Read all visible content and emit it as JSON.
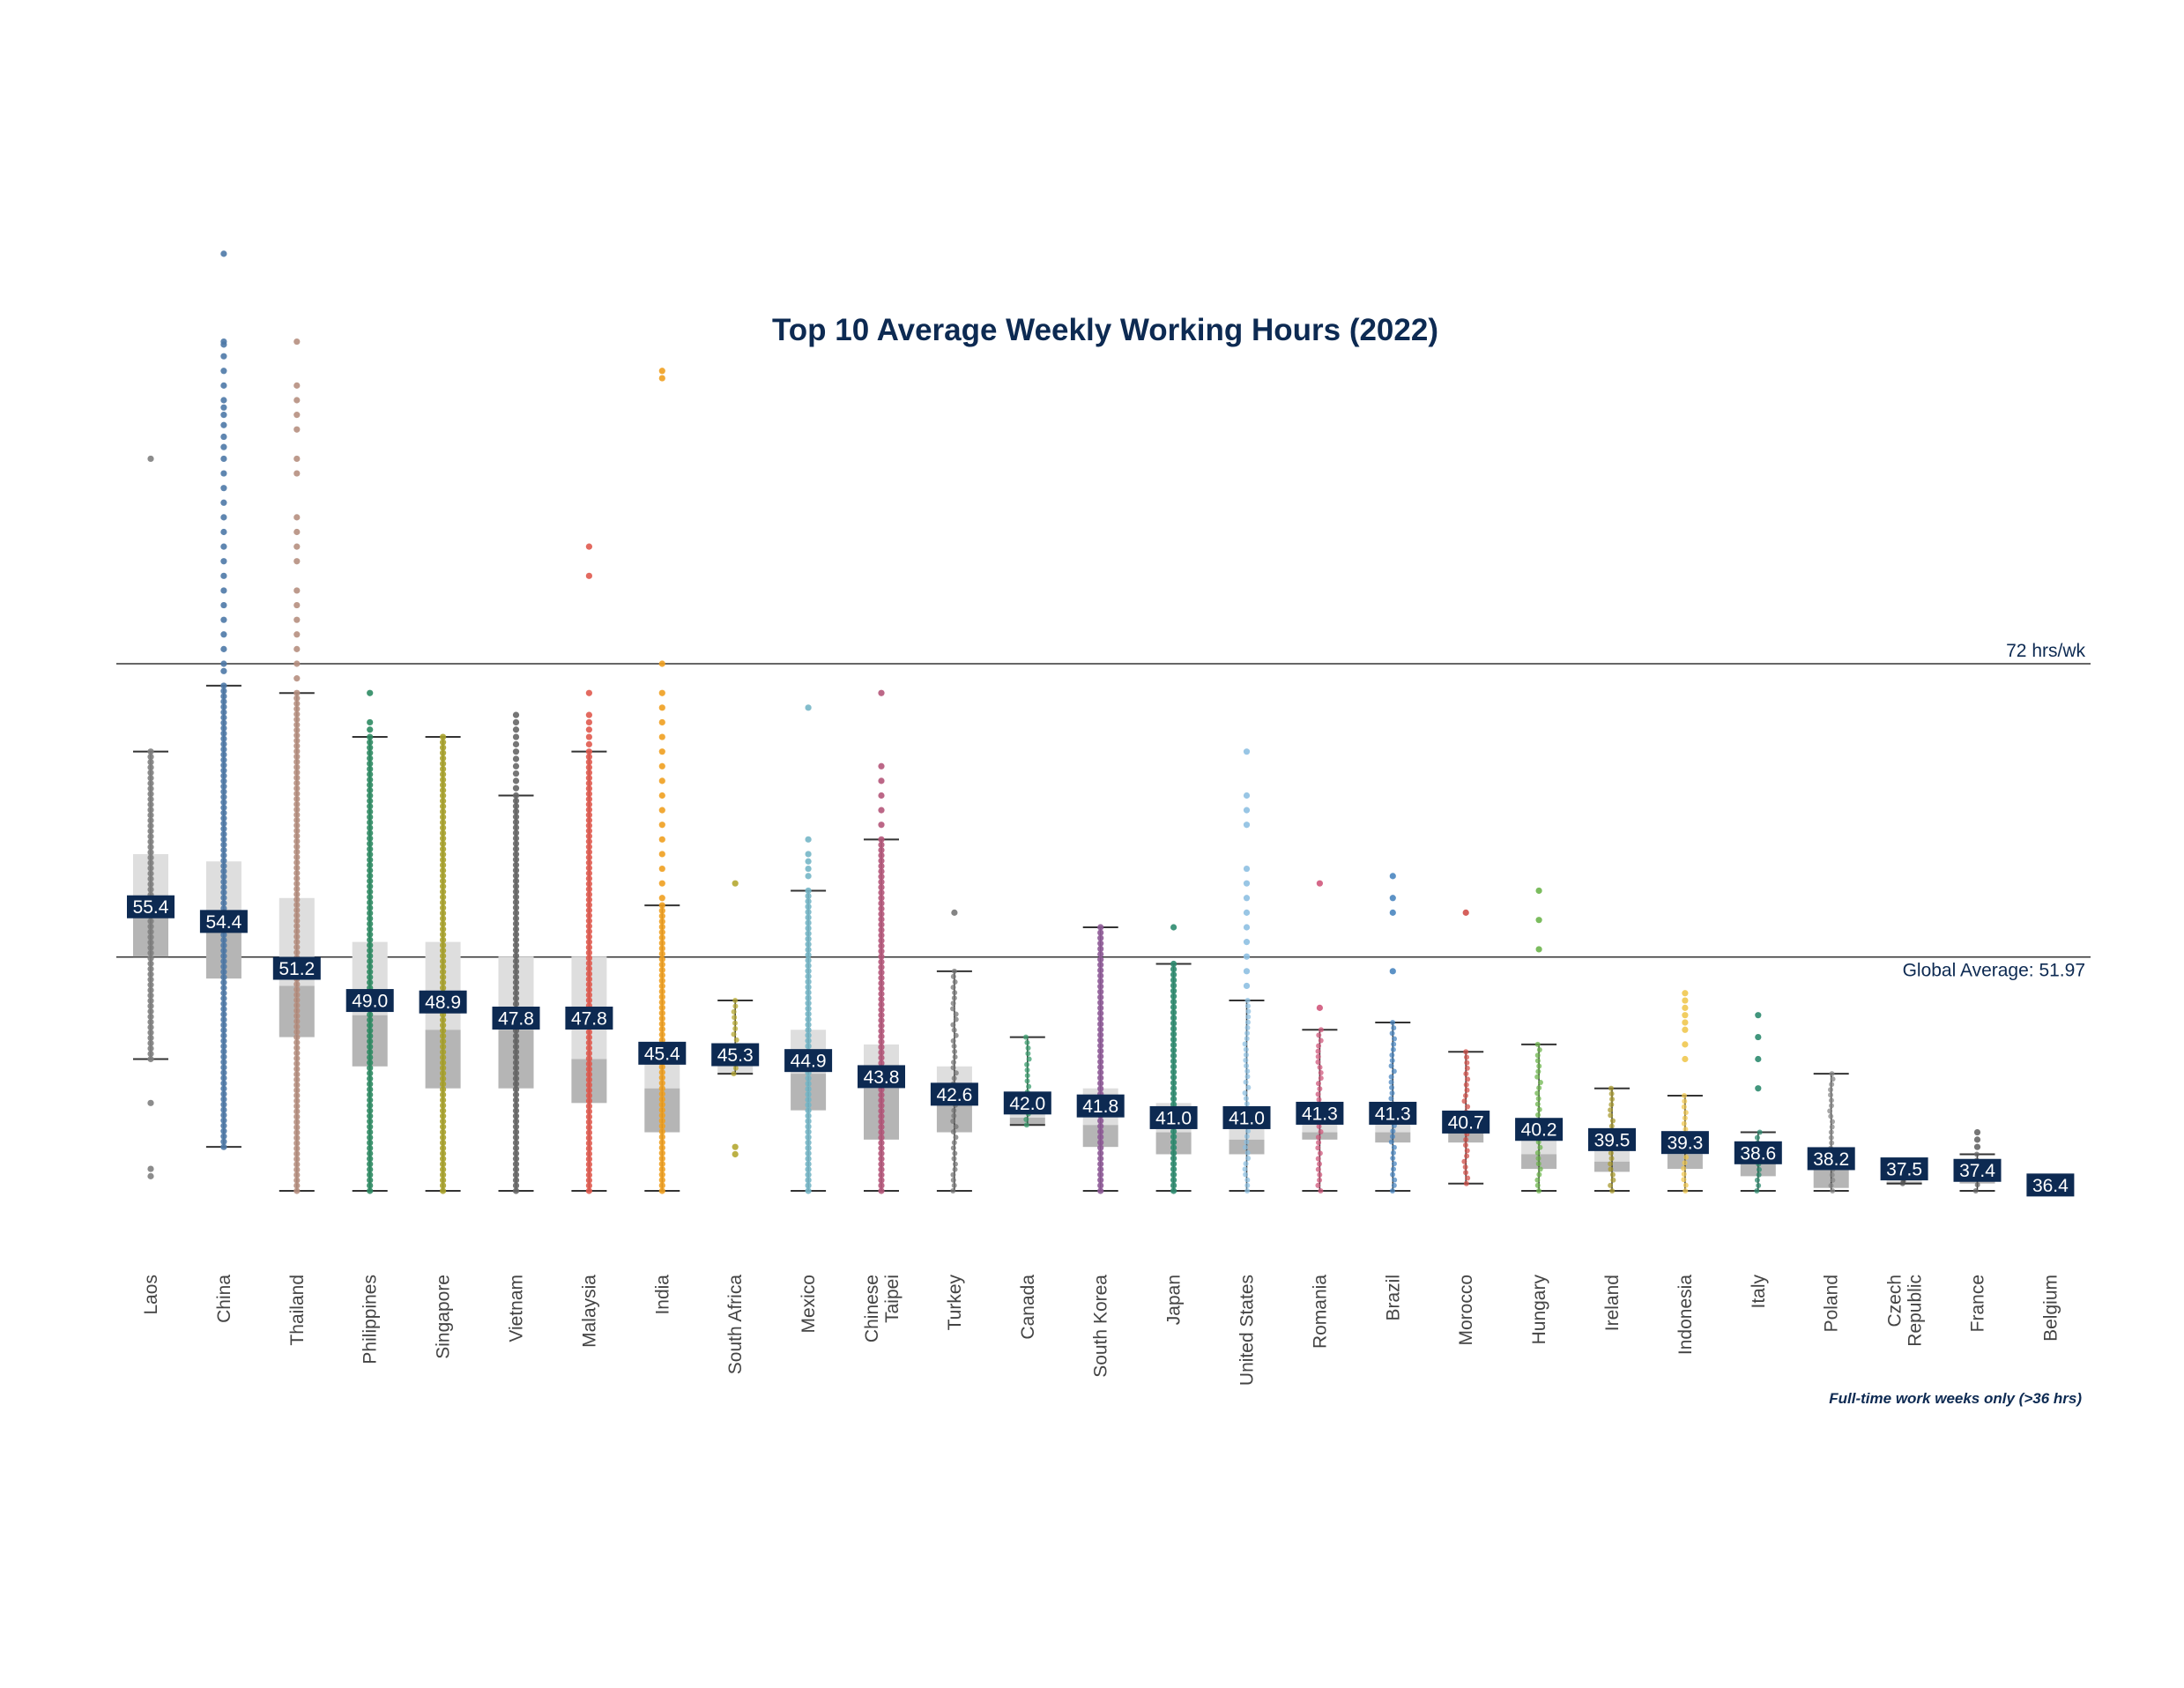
{
  "chart_data": {
    "type": "box",
    "title": "Top 10 Average Weekly Working Hours (2022)",
    "footnote": "Full-time work weeks only (>36 hrs)",
    "xlabel": "",
    "ylabel": "",
    "ylim": [
      36,
      108
    ],
    "grid": false,
    "reference_lines": [
      {
        "name": "max",
        "label": "72 hrs/wk",
        "value": 72
      },
      {
        "name": "global-average",
        "label": "Global Average: 51.97",
        "value": 51.97
      }
    ],
    "countries": [
      {
        "name": "Laos",
        "label_lines": [
          "Laos"
        ],
        "color": "#7f7f7f",
        "average": "55.4",
        "avg": 55.4,
        "q1": 52,
        "median": 55,
        "q3": 59,
        "whisker_low": 45,
        "whisker_high": 66,
        "outliers": [
          86,
          42,
          37.5,
          37
        ]
      },
      {
        "name": "China",
        "label_lines": [
          "China"
        ],
        "color": "#4e79a7",
        "average": "54.4",
        "avg": 54.4,
        "q1": 50.5,
        "median": 55,
        "q3": 58.5,
        "whisker_low": 39,
        "whisker_high": 70.5,
        "outliers": [
          94,
          93.8,
          93,
          92,
          91,
          90,
          89.5,
          89,
          88.3,
          87.5,
          86.8,
          86,
          85,
          84,
          83,
          82,
          81,
          80,
          79,
          78,
          77,
          76,
          75,
          74,
          73,
          72,
          71.5,
          100
        ]
      },
      {
        "name": "Thailand",
        "label_lines": [
          "Thailand"
        ],
        "color": "#b68f80",
        "average": "51.2",
        "avg": 51.2,
        "q1": 46.5,
        "median": 50,
        "q3": 56,
        "whisker_low": 36,
        "whisker_high": 70,
        "outliers": [
          94,
          91,
          90,
          89,
          88,
          86,
          85,
          82,
          81,
          80,
          79,
          77,
          76,
          75,
          74,
          73,
          72,
          71
        ]
      },
      {
        "name": "Philippines",
        "label_lines": [
          "Philippines"
        ],
        "color": "#2e8b63",
        "average": "49.0",
        "avg": 49.0,
        "q1": 44.5,
        "median": 48,
        "q3": 53,
        "whisker_low": 36,
        "whisker_high": 67,
        "outliers": [
          70,
          68,
          67.5
        ]
      },
      {
        "name": "Singapore",
        "label_lines": [
          "Singapore"
        ],
        "color": "#a8a22a",
        "average": "48.9",
        "avg": 48.9,
        "q1": 43,
        "median": 47,
        "q3": 53,
        "whisker_low": 36,
        "whisker_high": 67
      },
      {
        "name": "Vietnam",
        "label_lines": [
          "Vietnam"
        ],
        "color": "#666666",
        "average": "47.8",
        "avg": 47.8,
        "q1": 43,
        "median": 47,
        "q3": 52,
        "whisker_low": 36,
        "whisker_high": 63,
        "outliers": [
          68.5,
          68,
          67.5,
          67,
          66.5,
          66,
          65.5,
          65,
          64.5,
          64,
          63.5
        ]
      },
      {
        "name": "Malaysia",
        "label_lines": [
          "Malaysia"
        ],
        "color": "#e05a4f",
        "average": "47.8",
        "avg": 47.8,
        "q1": 42,
        "median": 45,
        "q3": 52,
        "whisker_low": 36,
        "whisker_high": 66,
        "outliers": [
          80,
          78,
          70,
          68.5,
          68,
          67.5,
          67,
          66.5
        ]
      },
      {
        "name": "India",
        "label_lines": [
          "India"
        ],
        "color": "#f0a020",
        "average": "45.4",
        "avg": 45.4,
        "q1": 40,
        "median": 43,
        "q3": 45.5,
        "whisker_low": 36,
        "whisker_high": 55.5,
        "outliers": [
          92,
          91.5,
          72,
          70,
          69,
          68,
          67,
          66,
          65,
          64,
          63,
          62,
          61,
          60,
          59,
          58,
          57,
          56
        ]
      },
      {
        "name": "South Africa",
        "label_lines": [
          "South Africa"
        ],
        "color": "#b5a832",
        "average": "45.3",
        "avg": 45.3,
        "q1": 44,
        "median": 44,
        "q3": 46,
        "whisker_low": 44,
        "whisker_high": 49,
        "outliers": [
          57,
          39,
          38.5
        ]
      },
      {
        "name": "Mexico",
        "label_lines": [
          "Mexico"
        ],
        "color": "#76b6c7",
        "average": "44.9",
        "avg": 44.9,
        "q1": 41.5,
        "median": 44,
        "q3": 47,
        "whisker_low": 36,
        "whisker_high": 56.5,
        "outliers": [
          69,
          60,
          59,
          58.5,
          58,
          57.5
        ]
      },
      {
        "name": "Chinese Taipei",
        "label_lines": [
          "Chinese",
          "Taipei"
        ],
        "color": "#b5577a",
        "average": "43.8",
        "avg": 43.8,
        "q1": 39.5,
        "median": 43,
        "q3": 46,
        "whisker_low": 36,
        "whisker_high": 60,
        "outliers": [
          70,
          65,
          64,
          63,
          62,
          61
        ]
      },
      {
        "name": "Turkey",
        "label_lines": [
          "Turkey"
        ],
        "color": "#777777",
        "average": "42.6",
        "avg": 42.6,
        "q1": 40,
        "median": 42,
        "q3": 44.5,
        "whisker_low": 36,
        "whisker_high": 51,
        "outliers": [
          55
        ]
      },
      {
        "name": "Canada",
        "label_lines": [
          "Canada"
        ],
        "color": "#3a9d6e",
        "average": "42.0",
        "avg": 42.0,
        "q1": 40.5,
        "median": 41,
        "q3": 42.5,
        "whisker_low": 40.5,
        "whisker_high": 46.5
      },
      {
        "name": "South Korea",
        "label_lines": [
          "South Korea"
        ],
        "color": "#8e5a97",
        "average": "41.8",
        "avg": 41.8,
        "q1": 39,
        "median": 40.5,
        "q3": 43,
        "whisker_low": 36,
        "whisker_high": 54
      },
      {
        "name": "Japan",
        "label_lines": [
          "Japan"
        ],
        "color": "#2e8b6f",
        "average": "41.0",
        "avg": 41.0,
        "q1": 38.5,
        "median": 40,
        "q3": 42,
        "whisker_low": 36,
        "whisker_high": 51.5,
        "outliers": [
          54
        ]
      },
      {
        "name": "United States",
        "label_lines": [
          "United States"
        ],
        "color": "#8ec0e2",
        "average": "41.0",
        "avg": 41.0,
        "q1": 38.5,
        "median": 39.5,
        "q3": 41.3,
        "whisker_low": 36,
        "whisker_high": 49,
        "outliers": [
          66,
          63,
          62,
          61,
          58,
          57,
          56,
          55,
          54,
          53,
          52,
          51,
          50
        ]
      },
      {
        "name": "Romania",
        "label_lines": [
          "Romania"
        ],
        "color": "#d0587c",
        "average": "41.3",
        "avg": 41.3,
        "q1": 39.5,
        "median": 40,
        "q3": 41.5,
        "whisker_low": 36,
        "whisker_high": 47,
        "outliers": [
          57,
          48.5
        ]
      },
      {
        "name": "Brazil",
        "label_lines": [
          "Brazil"
        ],
        "color": "#4a86c0",
        "average": "41.3",
        "avg": 41.3,
        "q1": 39.3,
        "median": 40,
        "q3": 42,
        "whisker_low": 36,
        "whisker_high": 47.5,
        "outliers": [
          57.5,
          56,
          55,
          51
        ]
      },
      {
        "name": "Morocco",
        "label_lines": [
          "Morocco"
        ],
        "color": "#d1504a",
        "average": "40.7",
        "avg": 40.7,
        "q1": 39.3,
        "median": 40,
        "q3": 41,
        "whisker_low": 36.5,
        "whisker_high": 45.5,
        "outliers": [
          55
        ]
      },
      {
        "name": "Hungary",
        "label_lines": [
          "Hungary"
        ],
        "color": "#6db54d",
        "average": "40.2",
        "avg": 40.2,
        "q1": 37.5,
        "median": 38.5,
        "q3": 39.5,
        "whisker_low": 36,
        "whisker_high": 46,
        "outliers": [
          56.5,
          54.5,
          52.5
        ]
      },
      {
        "name": "Ireland",
        "label_lines": [
          "Ireland"
        ],
        "color": "#a89a2e",
        "average": "39.5",
        "avg": 39.5,
        "q1": 37.3,
        "median": 38,
        "q3": 40,
        "whisker_low": 36,
        "whisker_high": 43
      },
      {
        "name": "Indonesia",
        "label_lines": [
          "Indonesia"
        ],
        "color": "#f0c850",
        "average": "39.3",
        "avg": 39.3,
        "q1": 37.5,
        "median": 38.5,
        "q3": 39.3,
        "whisker_low": 36,
        "whisker_high": 42.5,
        "outliers": [
          49.5,
          49,
          48.5,
          48,
          47.5,
          47,
          46,
          45
        ]
      },
      {
        "name": "Italy",
        "label_lines": [
          "Italy"
        ],
        "color": "#2e8b6f",
        "average": "38.6",
        "avg": 38.6,
        "q1": 37,
        "median": 38,
        "q3": 38.3,
        "whisker_low": 36,
        "whisker_high": 40,
        "outliers": [
          48,
          46.5,
          45,
          43
        ]
      },
      {
        "name": "Poland",
        "label_lines": [
          "Poland"
        ],
        "color": "#888888",
        "average": "38.2",
        "avg": 38.2,
        "q1": 36.2,
        "median": 37.5,
        "q3": 38,
        "whisker_low": 36,
        "whisker_high": 44
      },
      {
        "name": "Czech Republic",
        "label_lines": [
          "Czech",
          "Republic"
        ],
        "color": "#555555",
        "average": "37.5",
        "avg": 37.5,
        "q1": 36.5,
        "median": 36.6,
        "q3": 37.5,
        "whisker_low": 36.5,
        "whisker_high": 37.5
      },
      {
        "name": "France",
        "label_lines": [
          "France"
        ],
        "color": "#666666",
        "average": "37.4",
        "avg": 37.4,
        "q1": 36.5,
        "median": 37,
        "q3": 37.8,
        "whisker_low": 36,
        "whisker_high": 38.5,
        "outliers": [
          40,
          39.5,
          39
        ]
      },
      {
        "name": "Belgium",
        "label_lines": [
          "Belgium"
        ],
        "color": "#3a6db0",
        "average": "36.4",
        "avg": 36.4,
        "q1": 36.2,
        "median": 36.3,
        "q3": 36.5,
        "whisker_low": 36.2,
        "whisker_high": 36.5
      }
    ]
  }
}
